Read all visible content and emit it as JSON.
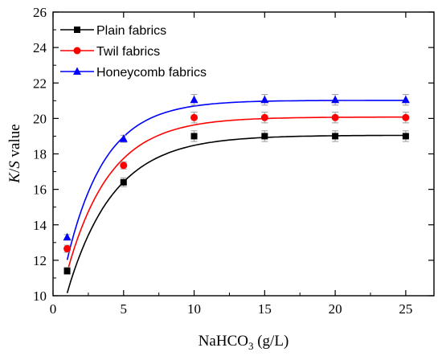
{
  "chart_data": {
    "type": "scatter",
    "xlabel": {
      "main": "NaHCO",
      "sub": "3",
      "rest": " (g/L)"
    },
    "ylabel": {
      "italic_k": "K",
      "slash": "/",
      "italic_s": "S",
      "rest": " value"
    },
    "xlim": [
      0,
      27
    ],
    "ylim": [
      10,
      26
    ],
    "xticks": [
      0,
      5,
      10,
      15,
      20,
      25
    ],
    "yticks": [
      10,
      12,
      14,
      16,
      18,
      20,
      22,
      24,
      26
    ],
    "grid": false,
    "legend_position": "top-left",
    "x": [
      1,
      5,
      10,
      15,
      20,
      25
    ],
    "series": [
      {
        "name": "Plain fabrics",
        "color": "#000000",
        "marker": "square",
        "values": [
          11.4,
          16.4,
          19.0,
          19.0,
          19.0,
          19.0
        ],
        "errors": [
          0.2,
          0.25,
          0.3,
          0.3,
          0.3,
          0.3
        ],
        "fit": {
          "a": 19.05,
          "b": 8.9,
          "k": 0.305
        }
      },
      {
        "name": "Twil fabrics",
        "color": "#ff0000",
        "marker": "circle",
        "values": [
          12.65,
          17.35,
          20.05,
          20.05,
          20.05,
          20.05
        ],
        "errors": [
          0.2,
          0.2,
          0.3,
          0.3,
          0.3,
          0.3
        ],
        "fit": {
          "a": 20.08,
          "b": 8.75,
          "k": 0.33
        }
      },
      {
        "name": "Honeycomb fabrics",
        "color": "#0000ff",
        "marker": "triangle",
        "values": [
          13.3,
          18.85,
          21.05,
          21.05,
          21.05,
          21.05
        ],
        "errors": [
          0.15,
          0.2,
          0.3,
          0.3,
          0.3,
          0.3
        ],
        "fit": {
          "a": 21.02,
          "b": 9.0,
          "k": 0.37
        }
      }
    ]
  }
}
